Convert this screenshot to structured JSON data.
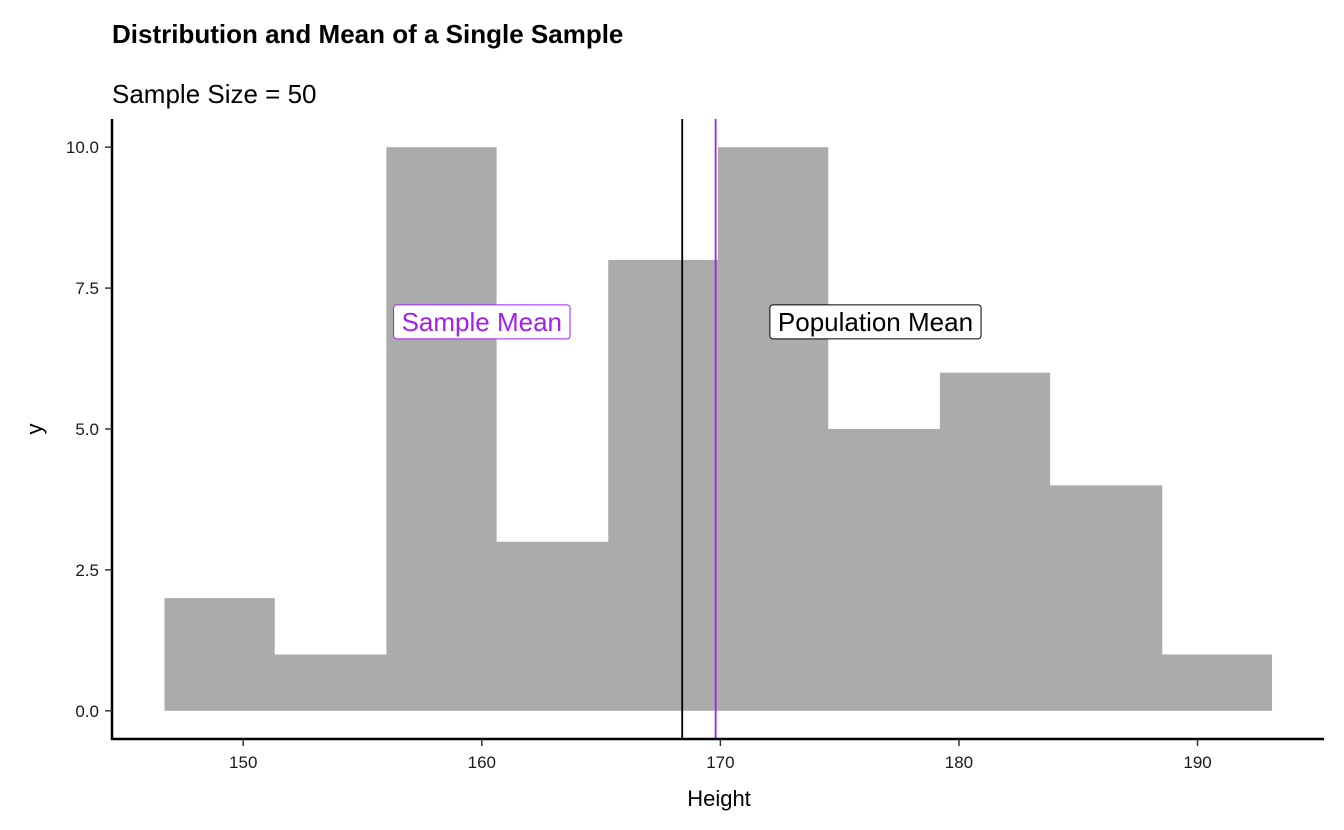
{
  "chart_data": {
    "type": "bar",
    "title": "Distribution and Mean of a Single Sample",
    "subtitle": "Sample Size = 50",
    "xlabel": "Height",
    "ylabel": "y",
    "xlim": [
      144.5,
      195.3
    ],
    "ylim": [
      -0.5,
      10.5
    ],
    "x_ticks": [
      150,
      160,
      170,
      180,
      190
    ],
    "x_tick_labels": [
      "150",
      "160",
      "170",
      "180",
      "190"
    ],
    "y_ticks": [
      0,
      2.5,
      5,
      7.5,
      10
    ],
    "y_tick_labels": [
      "0.0",
      "2.5",
      "5.0",
      "7.5",
      "10.0"
    ],
    "grid": false,
    "bins": [
      {
        "x0": 146.7,
        "x1": 151.3,
        "count": 2
      },
      {
        "x0": 151.3,
        "x1": 156.0,
        "count": 1
      },
      {
        "x0": 156.0,
        "x1": 160.6,
        "count": 10
      },
      {
        "x0": 160.6,
        "x1": 165.3,
        "count": 3
      },
      {
        "x0": 165.3,
        "x1": 169.9,
        "count": 8
      },
      {
        "x0": 169.9,
        "x1": 174.5,
        "count": 10
      },
      {
        "x0": 174.5,
        "x1": 179.2,
        "count": 5
      },
      {
        "x0": 179.2,
        "x1": 183.8,
        "count": 6
      },
      {
        "x0": 183.8,
        "x1": 188.5,
        "count": 4
      },
      {
        "x0": 188.5,
        "x1": 193.1,
        "count": 1
      }
    ],
    "vlines": [
      {
        "name": "population-mean",
        "x": 168.4,
        "color": "#000000"
      },
      {
        "name": "sample-mean",
        "x": 169.8,
        "color": "#a020f0"
      }
    ],
    "annotations": [
      {
        "name": "sample-mean-label",
        "text": "Sample Mean",
        "x": 160.0,
        "y": 6.9,
        "color": "#a020f0"
      },
      {
        "name": "population-mean-label",
        "text": "Population Mean",
        "x": 176.5,
        "y": 6.9,
        "color": "#000000"
      }
    ],
    "colors": {
      "bar": "#ababab",
      "axis": "#000000"
    }
  }
}
